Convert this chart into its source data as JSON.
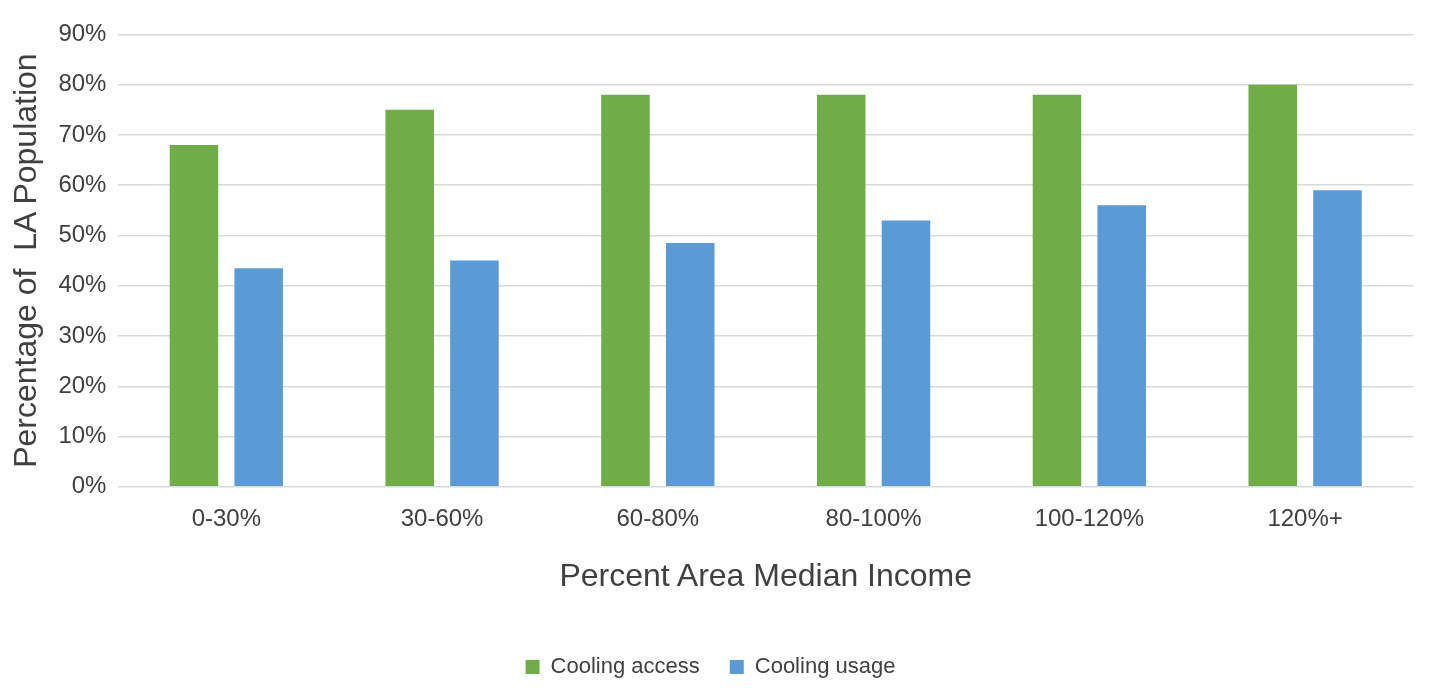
{
  "chart_data": {
    "type": "bar",
    "xlabel": "Percent Area Median Income",
    "ylabel": "Percentage of  LA Population",
    "categories": [
      "0-30%",
      "30-60%",
      "60-80%",
      "80-100%",
      "100-120%",
      "120%+"
    ],
    "series": [
      {
        "name": "Cooling access",
        "color": "#70ad47",
        "values": [
          68,
          75,
          78,
          78,
          78,
          80
        ]
      },
      {
        "name": "Cooling usage",
        "color": "#5b9bd5",
        "values": [
          43.5,
          45,
          48.5,
          53,
          56,
          59
        ]
      }
    ],
    "ylim": [
      0,
      90
    ],
    "yticks": [
      {
        "value": 0,
        "label": "0%"
      },
      {
        "value": 10,
        "label": "10%"
      },
      {
        "value": 20,
        "label": "20%"
      },
      {
        "value": 30,
        "label": "30%"
      },
      {
        "value": 40,
        "label": "40%"
      },
      {
        "value": 50,
        "label": "50%"
      },
      {
        "value": 60,
        "label": "60%"
      },
      {
        "value": 70,
        "label": "70%"
      },
      {
        "value": 80,
        "label": "80%"
      },
      {
        "value": 90,
        "label": "90%"
      }
    ],
    "grid": "y",
    "legend": "bottom"
  }
}
